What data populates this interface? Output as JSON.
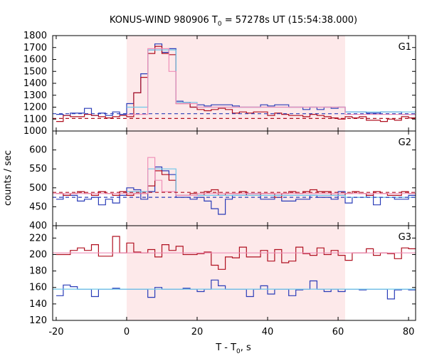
{
  "chart_data": {
    "type": "line",
    "title": "KONUS-WIND 980906 T",
    "title_sub": "0",
    "title_suffix": " = 57278s UT (15:54:38.000)",
    "xlabel": "T - T",
    "xlabel_sub": "0",
    "xlabel_suffix": ", s",
    "ylabel": "counts / sec",
    "xlim": [
      -21,
      82
    ],
    "x_ticks": [
      -20,
      0,
      20,
      40,
      60,
      80
    ],
    "x_tick_labels": [
      "-20",
      "0",
      "20",
      "40",
      "60",
      "80"
    ],
    "shaded_interval": [
      0,
      62
    ],
    "colors": {
      "shade": "#fde9ea",
      "blue": "#2a3cb8",
      "red": "#b01020",
      "cyan": "#6fc8ea",
      "pink": "#ef8fb8"
    },
    "panels": [
      {
        "name": "G1",
        "ylim": [
          1000,
          1800
        ],
        "y_ticks": [
          1000,
          1100,
          1200,
          1300,
          1400,
          1500,
          1600,
          1700,
          1800
        ],
        "y_tick_labels": [
          "1000",
          "1100",
          "1200",
          "1300",
          "1400",
          "1500",
          "1600",
          "1700",
          "1800"
        ],
        "series": [
          {
            "kind": "step",
            "color": "blue",
            "x": [
              -20,
              -18,
              -16,
              -14,
              -12,
              -10,
              -8,
              -6,
              -4,
              -2,
              0,
              2,
              4,
              6,
              8,
              10,
              12,
              14,
              16,
              18,
              20,
              22,
              24,
              26,
              28,
              30,
              32,
              34,
              36,
              38,
              40,
              42,
              44,
              46,
              48,
              50,
              52,
              54,
              56,
              58,
              60,
              62,
              64,
              66,
              68,
              70,
              72,
              74,
              76,
              78,
              80,
              82
            ],
            "y": [
              1140,
              1130,
              1150,
              1150,
              1190,
              1130,
              1150,
              1130,
              1160,
              1140,
              1230,
              1320,
              1480,
              1680,
              1730,
              1660,
              1690,
              1250,
              1240,
              1200,
              1220,
              1210,
              1220,
              1220,
              1220,
              1210,
              1200,
              1200,
              1200,
              1220,
              1210,
              1220,
              1220,
              1200,
              1200,
              1180,
              1200,
              1180,
              1200,
              1190,
              1200,
              1160,
              1160,
              1160,
              1150,
              1150,
              1160,
              1160,
              1160,
              1140,
              1140
            ]
          },
          {
            "kind": "step",
            "color": "red",
            "x": [
              -20,
              -18,
              -16,
              -14,
              -12,
              -10,
              -8,
              -6,
              -4,
              -2,
              0,
              2,
              4,
              6,
              8,
              10,
              12,
              14,
              16,
              18,
              20,
              22,
              24,
              26,
              28,
              30,
              32,
              34,
              36,
              38,
              40,
              42,
              44,
              46,
              48,
              50,
              52,
              54,
              56,
              58,
              60,
              62,
              64,
              66,
              68,
              70,
              72,
              74,
              76,
              78,
              80,
              82
            ],
            "y": [
              1080,
              1130,
              1120,
              1120,
              1140,
              1130,
              1120,
              1110,
              1120,
              1130,
              1120,
              1320,
              1450,
              1650,
              1710,
              1650,
              1640,
              1230,
              1230,
              1200,
              1180,
              1170,
              1180,
              1190,
              1180,
              1150,
              1160,
              1150,
              1160,
              1160,
              1130,
              1150,
              1140,
              1130,
              1130,
              1120,
              1140,
              1130,
              1120,
              1110,
              1100,
              1120,
              1110,
              1120,
              1090,
              1090,
              1080,
              1100,
              1090,
              1120,
              1110
            ]
          },
          {
            "kind": "step",
            "color": "cyan",
            "x": [
              0,
              6,
              14,
              20,
              62,
              82
            ],
            "y": [
              1200,
              1680,
              1240,
              1200,
              1160
            ]
          },
          {
            "kind": "step",
            "color": "pink",
            "x": [
              0,
              6,
              12,
              14,
              20,
              62,
              82
            ],
            "y": [
              1140,
              1690,
              1500,
              1230,
              1200,
              1140
            ]
          },
          {
            "kind": "dashed",
            "color": "blue",
            "x": [
              -21,
              82
            ],
            "y": [
              1145,
              1145
            ]
          },
          {
            "kind": "dashed",
            "color": "red",
            "x": [
              -21,
              82
            ],
            "y": [
              1105,
              1105
            ]
          }
        ]
      },
      {
        "name": "G2",
        "ylim": [
          400,
          650
        ],
        "y_ticks": [
          400,
          450,
          500,
          550,
          600
        ],
        "y_tick_labels": [
          "400",
          "450",
          "500",
          "550",
          "600"
        ],
        "series": [
          {
            "kind": "step",
            "color": "blue",
            "x": [
              -20,
              -18,
              -16,
              -14,
              -12,
              -10,
              -8,
              -6,
              -4,
              -2,
              0,
              2,
              4,
              6,
              8,
              10,
              12,
              14,
              16,
              18,
              20,
              22,
              24,
              26,
              28,
              30,
              32,
              34,
              36,
              38,
              40,
              42,
              44,
              46,
              48,
              50,
              52,
              54,
              56,
              58,
              60,
              62,
              64,
              66,
              68,
              70,
              72,
              74,
              76,
              78,
              80,
              82
            ],
            "y": [
              470,
              480,
              480,
              465,
              470,
              475,
              455,
              470,
              460,
              480,
              500,
              495,
              470,
              490,
              555,
              545,
              535,
              475,
              475,
              470,
              475,
              465,
              445,
              430,
              470,
              480,
              480,
              485,
              485,
              470,
              470,
              480,
              465,
              465,
              470,
              470,
              480,
              475,
              475,
              470,
              490,
              460,
              475,
              475,
              480,
              455,
              475,
              475,
              470,
              470,
              480
            ]
          },
          {
            "kind": "step",
            "color": "red",
            "x": [
              -20,
              -18,
              -16,
              -14,
              -12,
              -10,
              -8,
              -6,
              -4,
              -2,
              0,
              2,
              4,
              6,
              8,
              10,
              12,
              14,
              16,
              18,
              20,
              22,
              24,
              26,
              28,
              30,
              32,
              34,
              36,
              38,
              40,
              42,
              44,
              46,
              48,
              50,
              52,
              54,
              56,
              58,
              60,
              62,
              64,
              66,
              68,
              70,
              72,
              74,
              76,
              78,
              80,
              82
            ],
            "y": [
              485,
              480,
              485,
              490,
              485,
              480,
              490,
              485,
              480,
              490,
              480,
              485,
              485,
              505,
              545,
              535,
              520,
              480,
              480,
              485,
              480,
              490,
              495,
              480,
              485,
              485,
              490,
              480,
              480,
              485,
              485,
              475,
              485,
              490,
              485,
              490,
              495,
              490,
              490,
              480,
              480,
              485,
              490,
              485,
              480,
              490,
              485,
              480,
              480,
              490,
              485
            ]
          },
          {
            "kind": "step",
            "color": "cyan",
            "x": [
              0,
              6,
              14,
              20,
              62,
              82
            ],
            "y": [
              490,
              550,
              480,
              480,
              475
            ]
          },
          {
            "kind": "step",
            "color": "pink",
            "x": [
              -21,
              6,
              8,
              10,
              14,
              20,
              82
            ],
            "y": [
              485,
              580,
              520,
              490,
              480,
              485
            ]
          },
          {
            "kind": "dashed",
            "color": "blue",
            "x": [
              -21,
              82
            ],
            "y": [
              475,
              475
            ]
          },
          {
            "kind": "dashed",
            "color": "red",
            "x": [
              -21,
              82
            ],
            "y": [
              488,
              488
            ]
          }
        ]
      },
      {
        "name": "G3",
        "ylim": [
          120,
          235
        ],
        "y_ticks": [
          120,
          140,
          160,
          180,
          200,
          220
        ],
        "y_tick_labels": [
          "120",
          "140",
          "160",
          "180",
          "200",
          "220"
        ],
        "series": [
          {
            "kind": "step",
            "color": "red",
            "x": [
              -20,
              -18,
              -16,
              -14,
              -12,
              -10,
              -8,
              -6,
              -4,
              -2,
              0,
              2,
              4,
              6,
              8,
              10,
              12,
              14,
              16,
              18,
              20,
              22,
              24,
              26,
              28,
              30,
              32,
              34,
              36,
              38,
              40,
              42,
              44,
              46,
              48,
              50,
              52,
              54,
              56,
              58,
              60,
              62,
              64,
              66,
              68,
              70,
              72,
              74,
              76,
              78,
              80,
              82
            ],
            "y": [
              200,
              200,
              205,
              208,
              205,
              212,
              198,
              198,
              222,
              202,
              214,
              203,
              202,
              206,
              197,
              212,
              205,
              210,
              200,
              200,
              201,
              203,
              187,
              182,
              197,
              196,
              209,
              197,
              197,
              205,
              192,
              206,
              190,
              192,
              209,
              201,
              199,
              208,
              200,
              205,
              199,
              193,
              202,
              202,
              207,
              199,
              202,
              201,
              195,
              208,
              207
            ]
          },
          {
            "kind": "step",
            "color": "blue",
            "x": [
              -20,
              -18,
              -16,
              -14,
              -12,
              -10,
              -8,
              -6,
              -4,
              -2,
              0,
              2,
              4,
              6,
              8,
              10,
              12,
              14,
              16,
              18,
              20,
              22,
              24,
              26,
              28,
              30,
              32,
              34,
              36,
              38,
              40,
              42,
              44,
              46,
              48,
              50,
              52,
              54,
              56,
              58,
              60,
              62,
              64,
              66,
              68,
              70,
              72,
              74,
              76,
              78,
              80,
              82
            ],
            "y": [
              150,
              163,
              161,
              158,
              158,
              149,
              158,
              158,
              159,
              158,
              158,
              158,
              158,
              148,
              160,
              158,
              158,
              158,
              159,
              158,
              155,
              158,
              169,
              162,
              158,
              158,
              158,
              149,
              158,
              162,
              152,
              158,
              158,
              150,
              157,
              158,
              168,
              158,
              155,
              158,
              155,
              158,
              158,
              157,
              158,
              158,
              158,
              146,
              157,
              158,
              157
            ]
          },
          {
            "kind": "step",
            "color": "pink",
            "x": [
              -21,
              82
            ],
            "y": [
              202,
              202
            ]
          },
          {
            "kind": "step",
            "color": "cyan",
            "x": [
              -21,
              82
            ],
            "y": [
              158,
              158
            ]
          }
        ]
      }
    ]
  }
}
